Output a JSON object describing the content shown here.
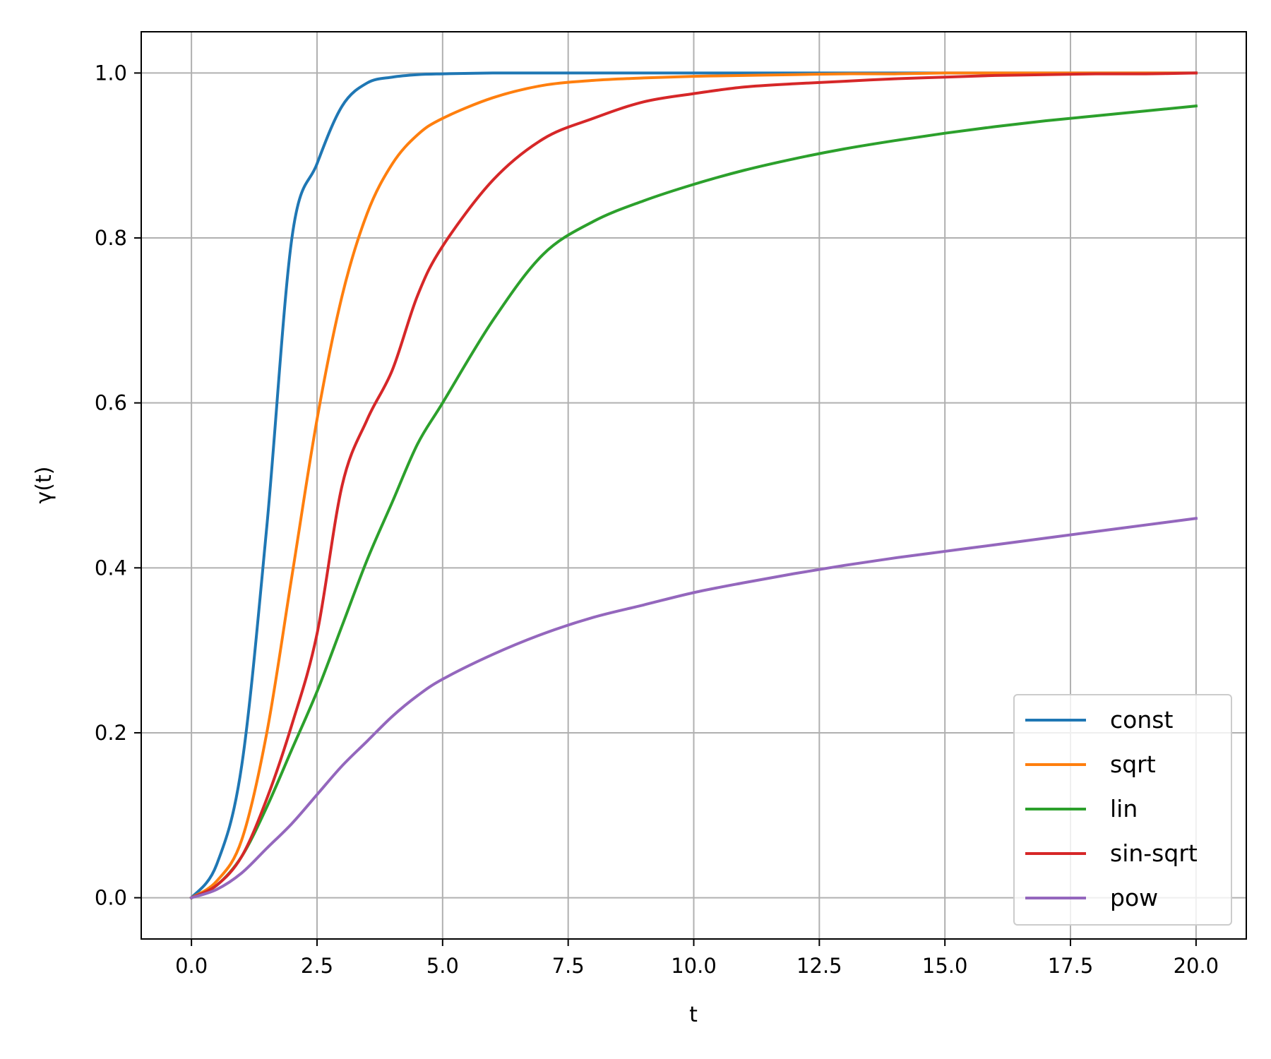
{
  "chart_data": {
    "type": "line",
    "title": "",
    "xlabel": "t",
    "ylabel": "γ(t)",
    "xlim": [
      -1.0,
      21.0
    ],
    "ylim": [
      -0.05,
      1.05
    ],
    "xticks": [
      0.0,
      2.5,
      5.0,
      7.5,
      10.0,
      12.5,
      15.0,
      17.5,
      20.0
    ],
    "xtick_labels": [
      "0.0",
      "2.5",
      "5.0",
      "7.5",
      "10.0",
      "12.5",
      "15.0",
      "17.5",
      "20.0"
    ],
    "yticks": [
      0.0,
      0.2,
      0.4,
      0.6,
      0.8,
      1.0
    ],
    "ytick_labels": [
      "0.0",
      "0.2",
      "0.4",
      "0.6",
      "0.8",
      "1.0"
    ],
    "grid": true,
    "legend": "lower-right",
    "x": [
      0.0,
      0.5,
      1.0,
      1.5,
      2.0,
      2.5,
      3.0,
      3.5,
      4.0,
      4.5,
      5.0,
      6.0,
      7.0,
      8.0,
      9.0,
      10.0,
      11.0,
      12.0,
      13.0,
      14.0,
      15.0,
      16.0,
      17.0,
      18.0,
      19.0,
      20.0
    ],
    "series": [
      {
        "name": "const",
        "color": "#1f77b4",
        "values": [
          0.0,
          0.04,
          0.16,
          0.45,
          0.8,
          0.89,
          0.96,
          0.988,
          0.995,
          0.998,
          0.999,
          1.0,
          1.0,
          1.0,
          1.0,
          1.0,
          1.0,
          1.0,
          1.0,
          1.0,
          1.0,
          1.0,
          1.0,
          1.0,
          1.0,
          1.0
        ]
      },
      {
        "name": "sqrt",
        "color": "#ff7f0e",
        "values": [
          0.0,
          0.02,
          0.07,
          0.2,
          0.39,
          0.58,
          0.73,
          0.83,
          0.89,
          0.925,
          0.945,
          0.97,
          0.985,
          0.991,
          0.994,
          0.996,
          0.997,
          0.998,
          0.999,
          0.999,
          1.0,
          1.0,
          1.0,
          1.0,
          1.0,
          1.0
        ]
      },
      {
        "name": "lin",
        "color": "#2ca02c",
        "values": [
          0.0,
          0.015,
          0.05,
          0.11,
          0.18,
          0.25,
          0.33,
          0.41,
          0.48,
          0.55,
          0.6,
          0.7,
          0.78,
          0.82,
          0.845,
          0.865,
          0.882,
          0.896,
          0.908,
          0.918,
          0.927,
          0.935,
          0.942,
          0.948,
          0.954,
          0.96
        ]
      },
      {
        "name": "sin-sqrt",
        "color": "#d62728",
        "values": [
          0.0,
          0.015,
          0.05,
          0.12,
          0.21,
          0.32,
          0.5,
          0.58,
          0.64,
          0.73,
          0.79,
          0.87,
          0.92,
          0.945,
          0.965,
          0.975,
          0.983,
          0.987,
          0.99,
          0.993,
          0.995,
          0.997,
          0.998,
          0.999,
          0.999,
          1.0
        ]
      },
      {
        "name": "pow",
        "color": "#9467bd",
        "values": [
          0.0,
          0.01,
          0.03,
          0.06,
          0.09,
          0.125,
          0.16,
          0.19,
          0.22,
          0.245,
          0.265,
          0.295,
          0.32,
          0.34,
          0.355,
          0.37,
          0.382,
          0.393,
          0.403,
          0.412,
          0.42,
          0.428,
          0.436,
          0.444,
          0.452,
          0.46
        ]
      }
    ]
  }
}
